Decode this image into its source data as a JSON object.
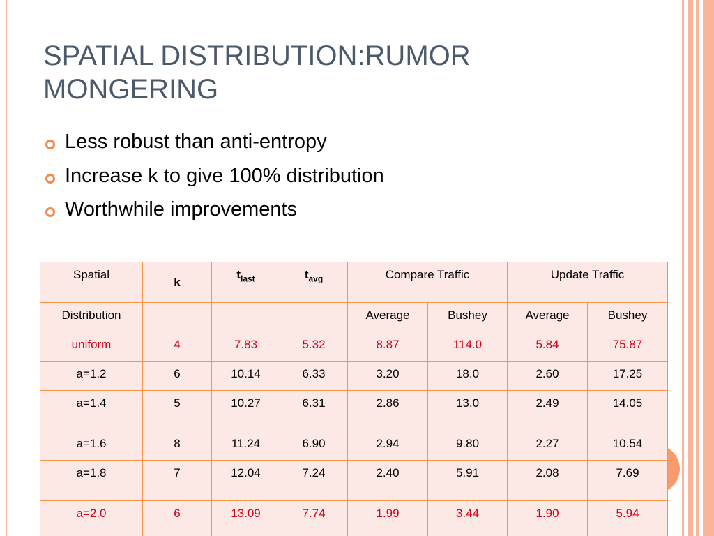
{
  "title": "SPATIAL DISTRIBUTION:RUMOR MONGERING",
  "bullets": [
    "Less robust than anti-entropy",
    "Increase k to give 100% distribution",
    "Worthwhile improvements"
  ],
  "table": {
    "header": {
      "spatial": "Spatial",
      "k": "k",
      "t_last": {
        "symbol": "t",
        "sub": "last"
      },
      "t_avg": {
        "symbol": "t",
        "sub": "avg"
      },
      "compare": "Compare Traffic",
      "update": "Update Traffic"
    },
    "subheader": {
      "distribution": "Distribution",
      "compare_average": "Average",
      "compare_bushey": "Bushey",
      "update_average": "Average",
      "update_bushey": "Bushey"
    },
    "rows": [
      [
        "uniform",
        "4",
        "7.83",
        "5.32",
        "8.87",
        "114.0",
        "5.84",
        "75.87"
      ],
      [
        "a=1.2",
        "6",
        "10.14",
        "6.33",
        "3.20",
        "18.0",
        "2.60",
        "17.25"
      ],
      [
        "a=1.4",
        "5",
        "10.27",
        "6.31",
        "2.86",
        "13.0",
        "2.49",
        "14.05"
      ],
      [
        "a=1.6",
        "8",
        "11.24",
        "6.90",
        "2.94",
        "9.80",
        "2.27",
        "10.54"
      ],
      [
        "a=1.8",
        "7",
        "12.04",
        "7.24",
        "2.40",
        "5.91",
        "2.08",
        "7.69"
      ],
      [
        "a=2.0",
        "6",
        "13.09",
        "7.74",
        "1.99",
        "3.44",
        "1.90",
        "5.94"
      ]
    ]
  }
}
